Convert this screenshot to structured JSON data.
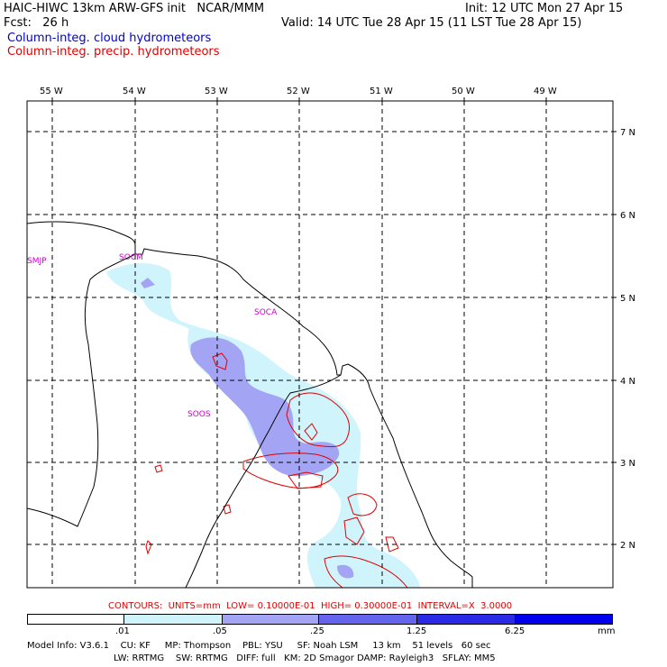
{
  "header": {
    "model": "HAIC-HIWC 13km ARW-GFS init   NCAR/MMM",
    "init": "Init: 12 UTC Mon 27 Apr 15",
    "fcst": "Fcst:   26 h",
    "valid": "Valid: 14 UTC Tue 28 Apr 15 (11 LST Tue 28 Apr 15)",
    "field1": "Column-integ. cloud hydrometeors",
    "field2": "Column-integ. precip. hydrometeors",
    "field1_color": "#0000cc",
    "field2_color": "#e00000"
  },
  "map": {
    "lon_labels": [
      "55 W",
      "54 W",
      "53 W",
      "52 W",
      "51 W",
      "50 W",
      "49 W"
    ],
    "lat_labels": [
      "7 N",
      "6 N",
      "5 N",
      "4 N",
      "3 N",
      "2 N"
    ],
    "stations": [
      "SMJP",
      "SOCM",
      "SOCA",
      "SOOS"
    ],
    "station_color": "#cc00cc"
  },
  "contours_note": "CONTOURS:  UNITS=mm  LOW= 0.10000E-01  HIGH= 0.30000E-01  INTERVAL=X  3.0000",
  "colorbar": {
    "ticks": [
      ".01",
      ".05",
      ".25",
      "1.25",
      "6.25"
    ],
    "units": "mm",
    "colors": [
      "#ffffff",
      "#d0f4fb",
      "#a4a4f4",
      "#6464ec",
      "#2a2ae6",
      "#0000ee"
    ]
  },
  "footer": {
    "line1": "Model Info: V3.6.1    CU: KF     MP: Thompson    PBL: YSU     SF: Noah LSM     13 km    51 levels   60 sec",
    "line2": "LW: RRTMG    SW: RRTMG   DIFF: full   KM: 2D Smagor DAMP: Rayleigh3   SFLAY: MM5"
  }
}
